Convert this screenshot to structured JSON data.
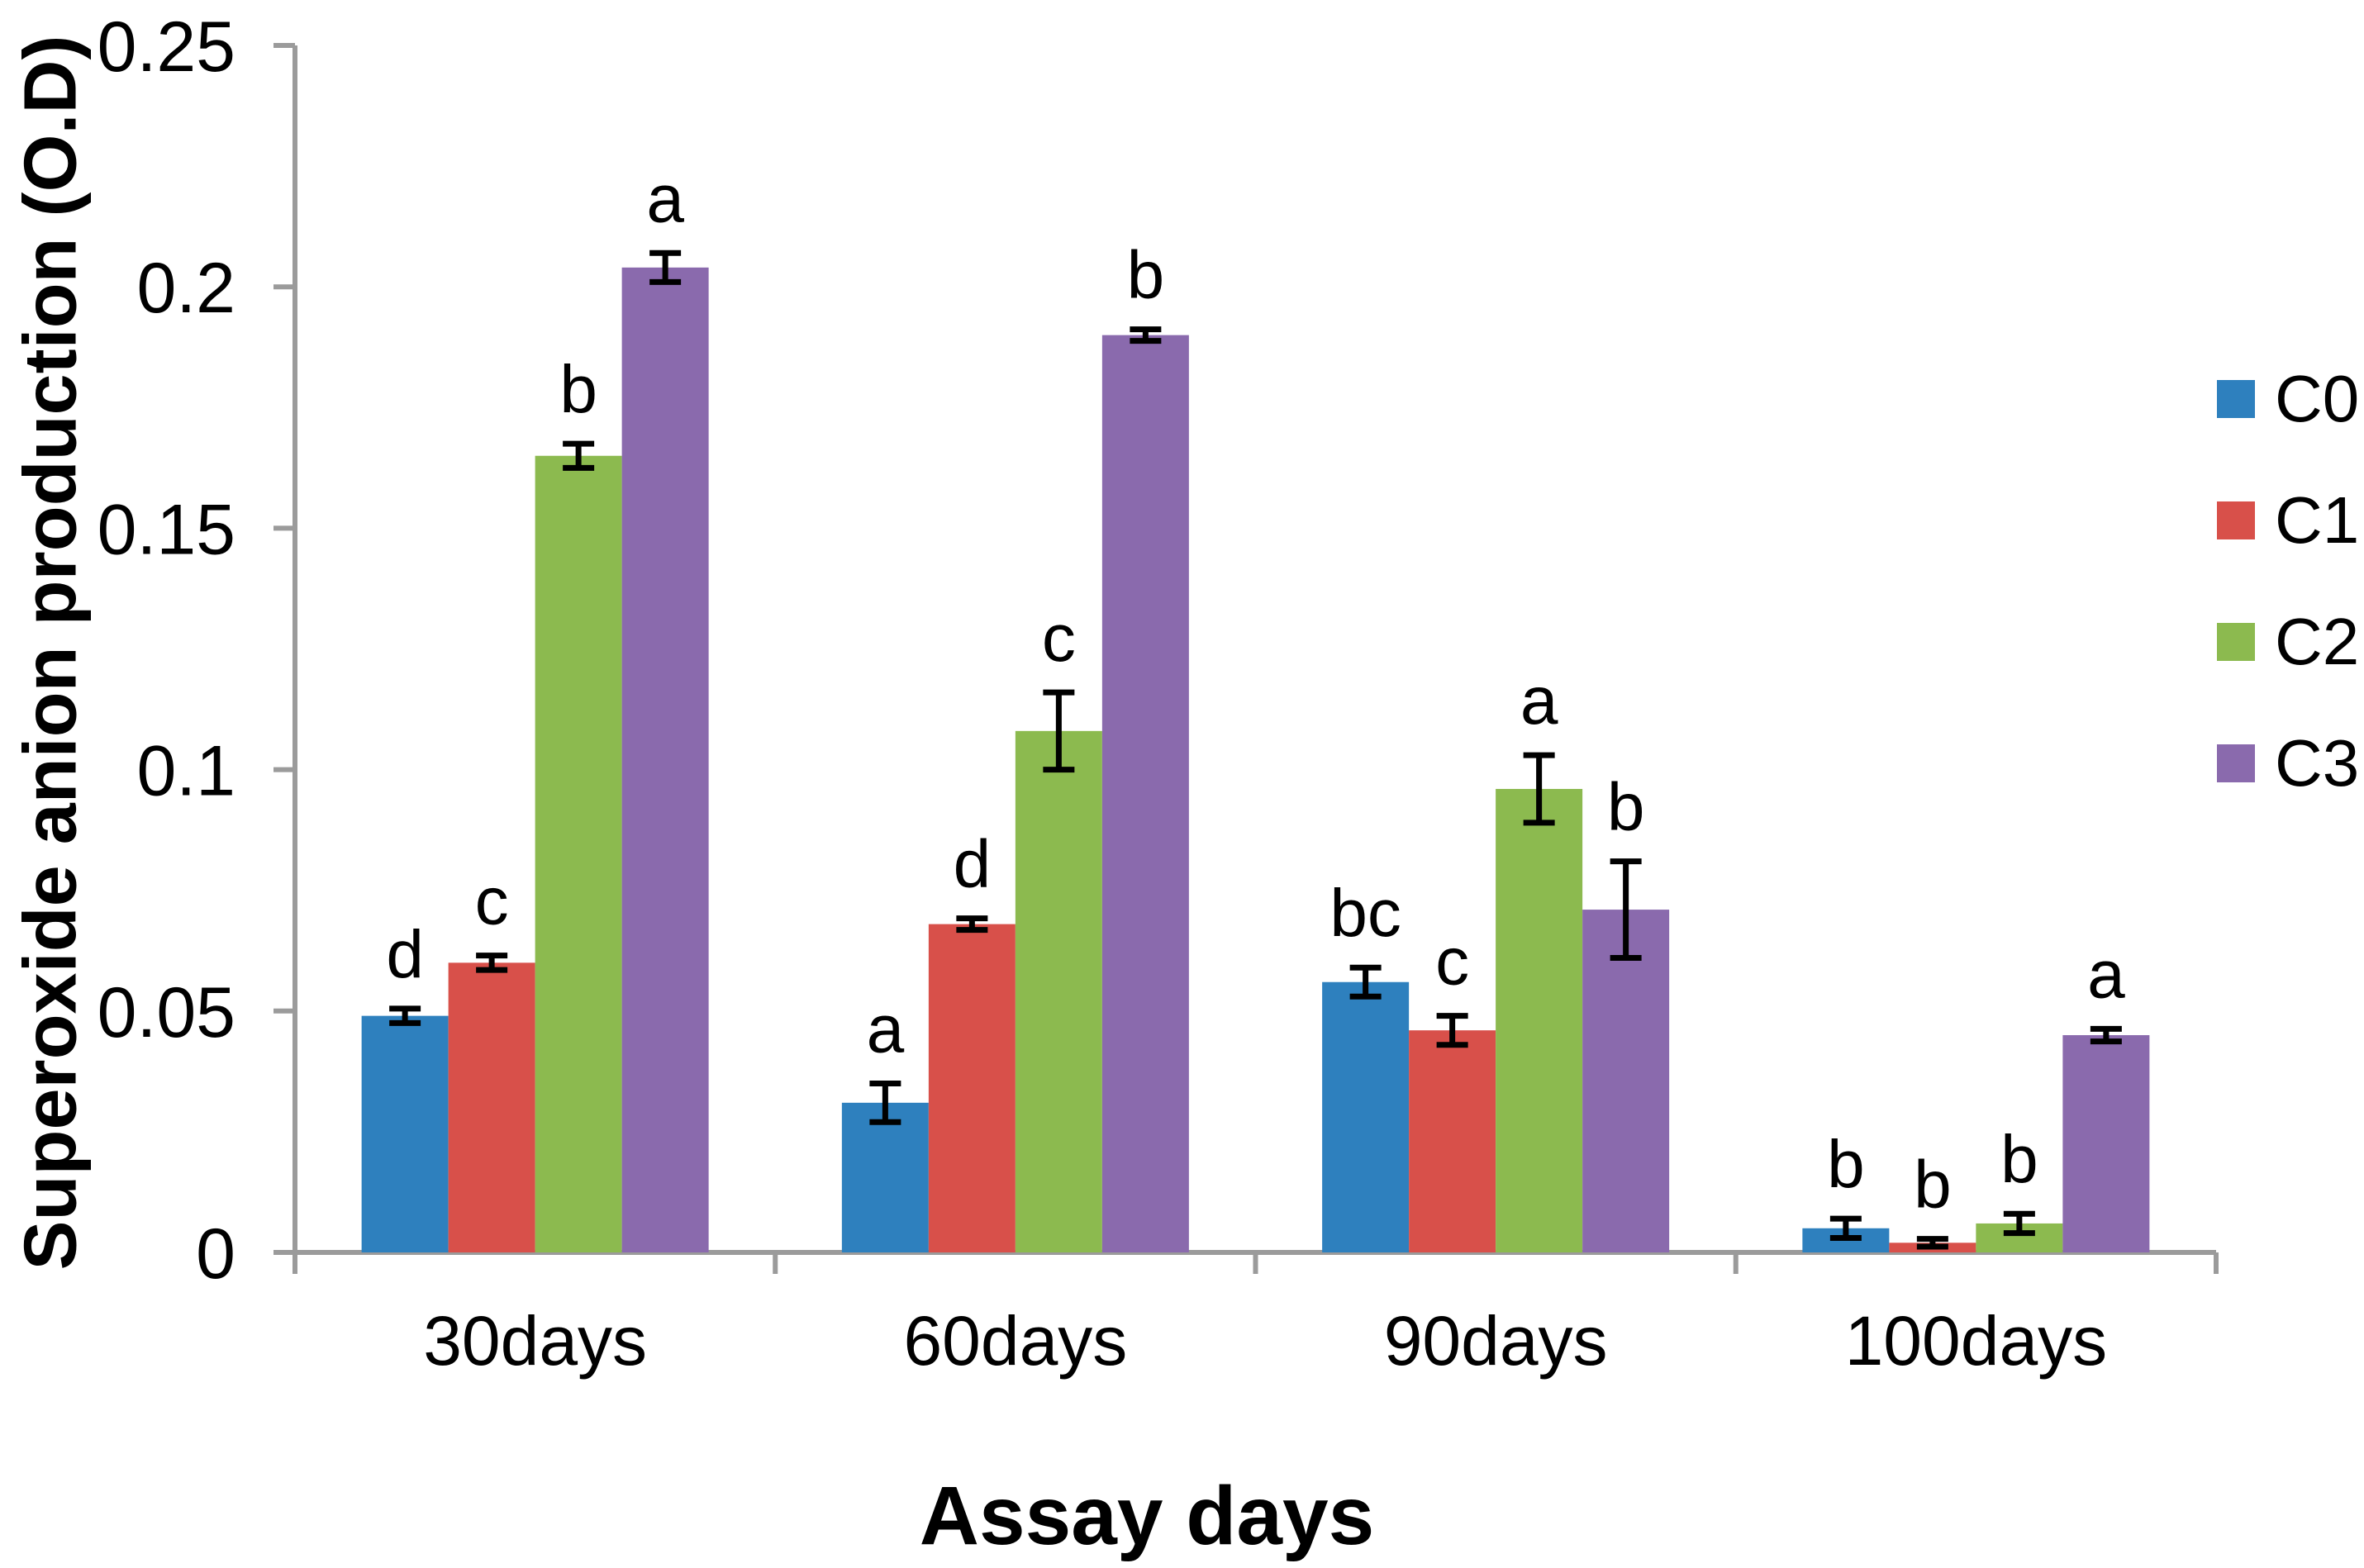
{
  "chart_data": {
    "type": "bar",
    "title": "",
    "xlabel": "Assay days",
    "ylabel": "Superoxide anion production (O.D)",
    "categories": [
      "30days",
      "60days",
      "90days",
      "100days"
    ],
    "ylim": [
      0,
      0.25
    ],
    "yticks": [
      0,
      0.05,
      0.1,
      0.15,
      0.2,
      0.25
    ],
    "ytick_labels": [
      "0",
      "0.05",
      "0.1",
      "0.15",
      "0.2",
      "0.25"
    ],
    "grid": false,
    "legend_position": "right",
    "error_bars": true,
    "axis_color": "#9B9B9B",
    "text_color": "#000000",
    "series": [
      {
        "name": "C0",
        "color": "#2E80BE",
        "values": [
          0.049,
          0.031,
          0.056,
          0.005
        ],
        "errors": [
          0.0015,
          0.004,
          0.003,
          0.002
        ],
        "sig": [
          "d",
          "a",
          "bc",
          "b"
        ]
      },
      {
        "name": "C1",
        "color": "#D8504A",
        "values": [
          0.06,
          0.068,
          0.046,
          0.002
        ],
        "errors": [
          0.0015,
          0.0012,
          0.003,
          0.0008
        ],
        "sig": [
          "c",
          "d",
          "c",
          "b"
        ]
      },
      {
        "name": "C2",
        "color": "#8CBA4F",
        "values": [
          0.165,
          0.108,
          0.096,
          0.006
        ],
        "errors": [
          0.0025,
          0.008,
          0.007,
          0.002
        ],
        "sig": [
          "b",
          "c",
          "a",
          "b"
        ]
      },
      {
        "name": "C3",
        "color": "#8A6AAD",
        "values": [
          0.204,
          0.19,
          0.071,
          0.045
        ],
        "errors": [
          0.003,
          0.0012,
          0.01,
          0.0013
        ],
        "sig": [
          "a",
          "b",
          "b",
          "a"
        ]
      }
    ]
  }
}
